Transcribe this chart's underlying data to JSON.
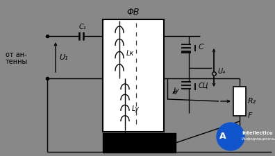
{
  "bg_color": "#888888",
  "line_color": "#000000",
  "white": "#ffffff",
  "black": "#000000",
  "gray": "#888888",
  "title": "ΦВ",
  "label_antenna": "от ан-\nтенны",
  "label_U1": "U₁",
  "label_C1": "C₁",
  "label_Lk": "Lк",
  "label_C": "C",
  "label_Cc": "CЦ",
  "label_U4": "U₄",
  "label_Ly": "Lу",
  "label_Iy": "Iу",
  "label_R2": "R₂",
  "label_F": "F",
  "figsize": [
    3.96,
    2.25
  ],
  "dpi": 100
}
